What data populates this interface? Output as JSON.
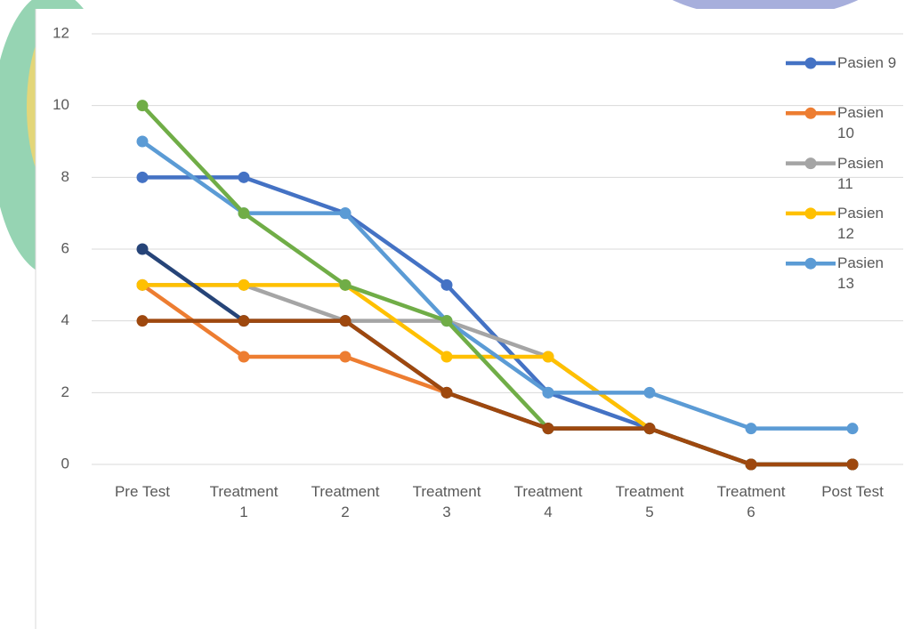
{
  "chart_data": {
    "type": "line",
    "categories": [
      "Pre Test",
      "Treatment 1",
      "Treatment 2",
      "Treatment 3",
      "Treatment 4",
      "Treatment 5",
      "Treatment 6",
      "Post Test"
    ],
    "ylim": [
      0,
      12
    ],
    "yticks": [
      0,
      2,
      4,
      6,
      8,
      10,
      12
    ],
    "grid": true,
    "legend": "right",
    "series": [
      {
        "name": "Pasien 9",
        "color": "#4472c4",
        "values": [
          8,
          8,
          7,
          5,
          2,
          1,
          0,
          0
        ]
      },
      {
        "name": "Pasien 10",
        "color": "#ed7d31",
        "values": [
          5,
          3,
          3,
          2,
          1,
          1,
          0,
          0
        ]
      },
      {
        "name": "Pasien 11",
        "color": "#a5a5a5",
        "values": [
          5,
          5,
          4,
          4,
          3,
          1,
          0,
          0
        ]
      },
      {
        "name": "Pasien 12",
        "color": "#ffc000",
        "values": [
          5,
          5,
          5,
          3,
          3,
          1,
          0,
          0
        ]
      },
      {
        "name": "Pasien 13",
        "color": "#5b9bd5",
        "values": [
          9,
          7,
          7,
          4,
          2,
          2,
          1,
          1
        ]
      },
      {
        "color": "#70ad47",
        "values": [
          10,
          7,
          5,
          4,
          1,
          1,
          0,
          0
        ]
      },
      {
        "color": "#264478",
        "values": [
          6,
          4,
          4,
          2,
          1,
          1,
          0,
          0
        ]
      },
      {
        "color": "#9e480e",
        "values": [
          4,
          4,
          4,
          2,
          1,
          1,
          0,
          0
        ]
      }
    ]
  }
}
